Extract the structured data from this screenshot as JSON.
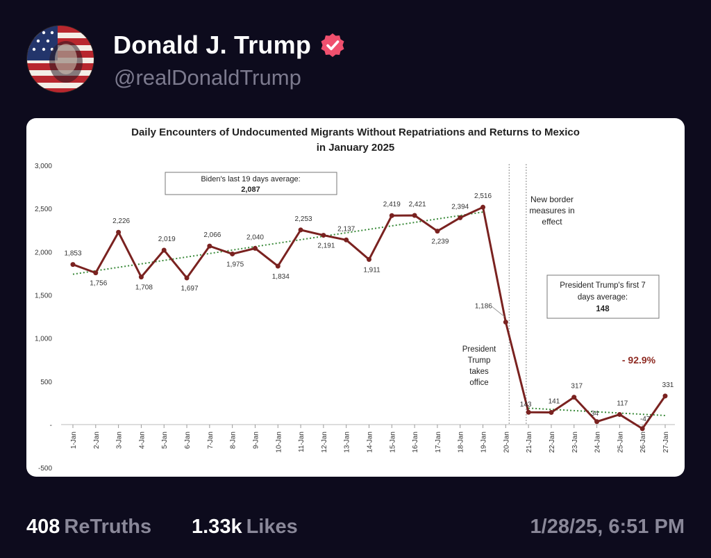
{
  "post": {
    "author_name": "Donald J. Trump",
    "author_handle": "@realDonaldTrump",
    "retruths_count": "408",
    "retruths_label": "ReTruths",
    "likes_count": "1.33k",
    "likes_label": "Likes",
    "timestamp": "1/28/25, 6:51 PM"
  },
  "colors": {
    "background": "#0d0b1d",
    "verified_badge": "#f0506e",
    "muted_text": "#8a8899",
    "series_line": "#7a2220",
    "trend_line": "#3a8a3a"
  },
  "icons": {
    "verified": "verified-badge-icon",
    "avatar": "flag-portrait-avatar"
  },
  "chart_data": {
    "type": "line",
    "title": "Daily Encounters of Undocumented Migrants Without Repatriations and Returns to Mexico",
    "subtitle": "in January 2025",
    "xlabel": "",
    "ylabel": "",
    "ylim": [
      -500,
      3000
    ],
    "yticks": [
      "3,000",
      "2,500",
      "2,000",
      "1,500",
      "1,000",
      "500",
      "-",
      "-500"
    ],
    "ytick_values": [
      3000,
      2500,
      2000,
      1500,
      1000,
      500,
      0,
      -500
    ],
    "categories": [
      "1-Jan",
      "2-Jan",
      "3-Jan",
      "4-Jan",
      "5-Jan",
      "6-Jan",
      "7-Jan",
      "8-Jan",
      "9-Jan",
      "10-Jan",
      "11-Jan",
      "12-Jan",
      "13-Jan",
      "14-Jan",
      "15-Jan",
      "16-Jan",
      "17-Jan",
      "18-Jan",
      "19-Jan",
      "20-Jan",
      "21-Jan",
      "22-Jan",
      "23-Jan",
      "24-Jan",
      "25-Jan",
      "26-Jan",
      "27-Jan"
    ],
    "series": [
      {
        "values": [
          1853,
          1756,
          2226,
          1708,
          2019,
          1697,
          2066,
          1975,
          2040,
          1834,
          2253,
          2191,
          2137,
          1911,
          2419,
          2421,
          2239,
          2394,
          2516,
          1186,
          143,
          141,
          317,
          34,
          117,
          -47,
          331
        ],
        "labels": [
          "1,853",
          "1,756",
          "2,226",
          "1,708",
          "2,019",
          "1,697",
          "2,066",
          "1,975",
          "2,040",
          "1,834",
          "2,253",
          "2,191",
          "2,137",
          "1,911",
          "2,419",
          "2,421",
          "2,239",
          "2,394",
          "2,516",
          "1,186",
          "143",
          "141",
          "317",
          "34",
          "117",
          "-47",
          "331"
        ]
      }
    ],
    "trendlines": [
      {
        "from_category": "1-Jan",
        "to_category": "19-Jan",
        "from_value": 1740,
        "to_value": 2460,
        "style": "dotted"
      },
      {
        "from_category": "21-Jan",
        "to_category": "27-Jan",
        "from_value": 190,
        "to_value": 105,
        "style": "dotted"
      }
    ],
    "vertical_markers": [
      "20-Jan",
      "21-Jan"
    ],
    "annotations": {
      "biden_line1": "Biden's last 19 days average:",
      "biden_value": "2,087",
      "border_line1": "New border",
      "border_line2": "measures in",
      "border_line3": "effect",
      "trump_avg_line1": "President Trump's first 7",
      "trump_avg_line2": "days average:",
      "trump_avg_value": "148",
      "office_line1": "President",
      "office_line2": "Trump",
      "office_line3": "takes",
      "office_line4": "office",
      "percent_change": "- 92.9%"
    },
    "grid": false,
    "legend": "none"
  }
}
